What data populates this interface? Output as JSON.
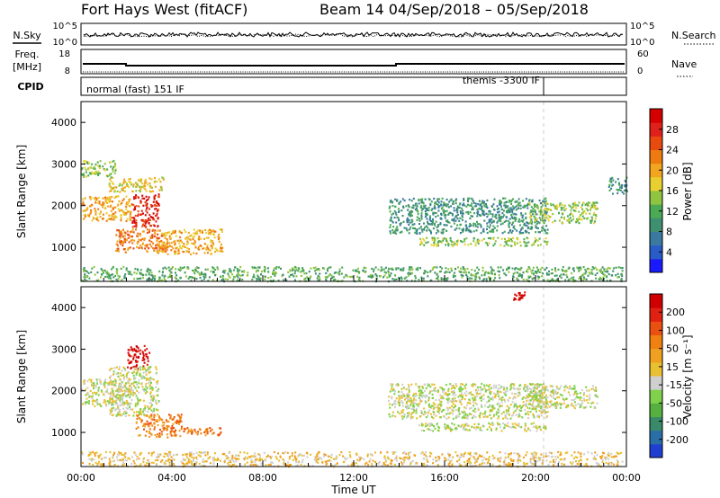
{
  "header": {
    "station": "Fort Hays West (fitACF)",
    "beam_date": "Beam 14  04/Sep/2018 – 05/Sep/2018"
  },
  "noise_panel": {
    "left_label": "N.Sky",
    "right_label": "N.Search",
    "left_ticks": [
      "10^5",
      "10^0"
    ],
    "right_ticks": [
      "10^5",
      "10^0"
    ]
  },
  "freq_panel": {
    "left_label_lines": [
      "Freq.",
      "[MHz]"
    ],
    "right_label": "Nave",
    "left_ticks": [
      "18",
      "8"
    ],
    "right_ticks": [
      "60",
      "0"
    ]
  },
  "cpid_panel": {
    "label": "CPID",
    "modes": [
      "normal (fast) 151 IF",
      "themis -3300 IF"
    ]
  },
  "chart_data": [
    {
      "type": "heatmap",
      "title": "Power",
      "ylabel": "Slant Range [km]",
      "xlabel": "",
      "ylim": [
        180,
        4500
      ],
      "xlim": [
        0,
        24
      ],
      "yticks": [
        "1000",
        "2000",
        "3000",
        "4000"
      ],
      "colorbar": {
        "label": "Power [dB]",
        "ticks": [
          "4",
          "8",
          "12",
          "16",
          "20",
          "24",
          "28"
        ],
        "colors": [
          "#1a1aff",
          "#2a5cc8",
          "#3a7aa0",
          "#3f9070",
          "#4aaa55",
          "#8fc440",
          "#e8d030",
          "#f2a51e",
          "#ee7a10",
          "#e84a10",
          "#e0201a",
          "#d40000"
        ]
      },
      "echo_regions": [
        {
          "x": [
            0.0,
            2.2
          ],
          "y": [
            1650,
            2250
          ],
          "level": 7
        },
        {
          "x": [
            1.5,
            3.7
          ],
          "y": [
            900,
            1450
          ],
          "level": 8
        },
        {
          "x": [
            3.3,
            6.2
          ],
          "y": [
            850,
            1450
          ],
          "level": 7
        },
        {
          "x": [
            2.2,
            3.4
          ],
          "y": [
            1500,
            2300
          ],
          "level": 10
        },
        {
          "x": [
            1.2,
            3.6
          ],
          "y": [
            2350,
            2700
          ],
          "level": 6
        },
        {
          "x": [
            0.0,
            1.5
          ],
          "y": [
            2700,
            3100
          ],
          "level": 5
        },
        {
          "x": [
            0.0,
            23.8
          ],
          "y": [
            200,
            550
          ],
          "level": 4
        },
        {
          "x": [
            13.5,
            20.5
          ],
          "y": [
            1350,
            2200
          ],
          "level": 3
        },
        {
          "x": [
            14.8,
            20.5
          ],
          "y": [
            1050,
            1250
          ],
          "level": 5
        },
        {
          "x": [
            19.7,
            22.7
          ],
          "y": [
            1600,
            2100
          ],
          "level": 5
        },
        {
          "x": [
            23.2,
            24.0
          ],
          "y": [
            2300,
            2700
          ],
          "level": 3
        }
      ]
    },
    {
      "type": "heatmap",
      "title": "Velocity",
      "ylabel": "Slant Range [km]",
      "xlabel": "Time UT",
      "ylim": [
        180,
        4500
      ],
      "xlim": [
        0,
        24
      ],
      "yticks": [
        "1000",
        "2000",
        "3000",
        "4000"
      ],
      "xticks": [
        "00:00",
        "04:00",
        "08:00",
        "12:00",
        "16:00",
        "20:00",
        "00:00"
      ],
      "colorbar": {
        "label": "Velocity [m s⁻¹]",
        "ticks": [
          "200",
          "100",
          "50",
          "15",
          "-15",
          "-50",
          "-100",
          "-200"
        ],
        "colors": [
          "#1f3fd0",
          "#2a6ea8",
          "#3a8a6a",
          "#55b040",
          "#7fd04a",
          "#cfcfcf",
          "#e8c030",
          "#f0a020",
          "#f08010",
          "#ea5010",
          "#e02010",
          "#d00000"
        ]
      },
      "echo_regions": [
        {
          "x": [
            0.0,
            2.2
          ],
          "y": [
            1650,
            2300
          ],
          "level": 5
        },
        {
          "x": [
            2.0,
            3.0
          ],
          "y": [
            2550,
            3100
          ],
          "level": 11
        },
        {
          "x": [
            2.4,
            4.4
          ],
          "y": [
            900,
            1450
          ],
          "level": 8
        },
        {
          "x": [
            4.4,
            6.2
          ],
          "y": [
            950,
            1150
          ],
          "level": 8
        },
        {
          "x": [
            1.2,
            3.4
          ],
          "y": [
            1400,
            2600
          ],
          "level": 5
        },
        {
          "x": [
            0.0,
            23.8
          ],
          "y": [
            200,
            550
          ],
          "level": 6
        },
        {
          "x": [
            13.5,
            20.5
          ],
          "y": [
            1350,
            2200
          ],
          "level": 5
        },
        {
          "x": [
            14.8,
            20.5
          ],
          "y": [
            1050,
            1250
          ],
          "level": 5
        },
        {
          "x": [
            19.5,
            22.7
          ],
          "y": [
            1600,
            2150
          ],
          "level": 5
        },
        {
          "x": [
            19.0,
            19.6
          ],
          "y": [
            4200,
            4400
          ],
          "level": 11
        }
      ]
    }
  ]
}
